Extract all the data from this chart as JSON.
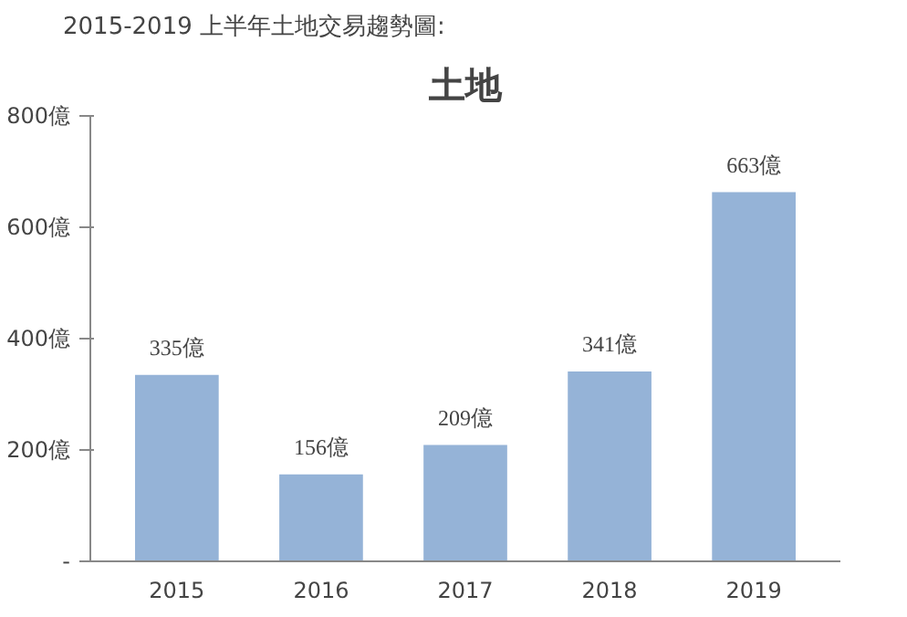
{
  "chart_data": {
    "type": "bar",
    "title": "土地",
    "subtitle": "2015-2019 上半年土地交易趨勢圖:",
    "categories": [
      "2015",
      "2016",
      "2017",
      "2018",
      "2019"
    ],
    "values": [
      335,
      156,
      209,
      341,
      663
    ],
    "value_labels": [
      "335億",
      "156億",
      "209億",
      "341億",
      "663億"
    ],
    "color": "#95b3d7",
    "ylim": [
      0,
      800
    ],
    "yticks": [
      {
        "value": 0,
        "label": "-"
      },
      {
        "value": 200,
        "label": "200億"
      },
      {
        "value": 400,
        "label": "400億"
      },
      {
        "value": 600,
        "label": "600億"
      },
      {
        "value": 800,
        "label": "800億"
      }
    ],
    "grid": false
  }
}
